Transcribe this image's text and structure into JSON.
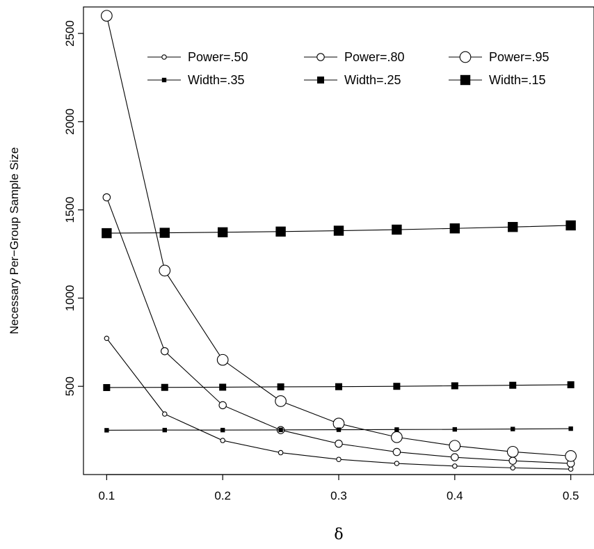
{
  "chart_data": {
    "type": "line",
    "title": "",
    "xlabel": "δ",
    "ylabel": "Necessary Per−Group Sample Size",
    "xlim": [
      0.08,
      0.52
    ],
    "ylim": [
      0,
      2650
    ],
    "x_ticks": [
      0.1,
      0.2,
      0.3,
      0.4,
      0.5
    ],
    "x_tick_labels": [
      "0.1",
      "0.2",
      "0.3",
      "0.4",
      "0.5"
    ],
    "y_ticks": [
      500,
      1000,
      1500,
      2000,
      2500
    ],
    "y_tick_labels": [
      "500",
      "1000",
      "1500",
      "2000",
      "2500"
    ],
    "grid": false,
    "legend_position": "top",
    "x": [
      0.1,
      0.15,
      0.2,
      0.25,
      0.3,
      0.35,
      0.4,
      0.45,
      0.5
    ],
    "series": [
      {
        "name": "Power=.50",
        "marker": "circle-small",
        "values": [
          772,
          343,
          193,
          124,
          86,
          63,
          48,
          38,
          31
        ]
      },
      {
        "name": "Power=.80",
        "marker": "circle-medium",
        "values": [
          1571,
          699,
          393,
          252,
          175,
          128,
          98,
          78,
          63
        ]
      },
      {
        "name": "Power=.95",
        "marker": "circle-large",
        "values": [
          2600,
          1156,
          650,
          416,
          289,
          212,
          163,
          129,
          105
        ]
      },
      {
        "name": "Width=.35",
        "marker": "square-small",
        "values": [
          251,
          252,
          252,
          253,
          254,
          255,
          256,
          258,
          260
        ]
      },
      {
        "name": "Width=.25",
        "marker": "square-medium",
        "values": [
          493,
          494,
          495,
          497,
          498,
          500,
          503,
          506,
          509
        ]
      },
      {
        "name": "Width=.15",
        "marker": "square-large",
        "values": [
          1368,
          1370,
          1373,
          1377,
          1382,
          1388,
          1395,
          1403,
          1412
        ]
      }
    ]
  }
}
